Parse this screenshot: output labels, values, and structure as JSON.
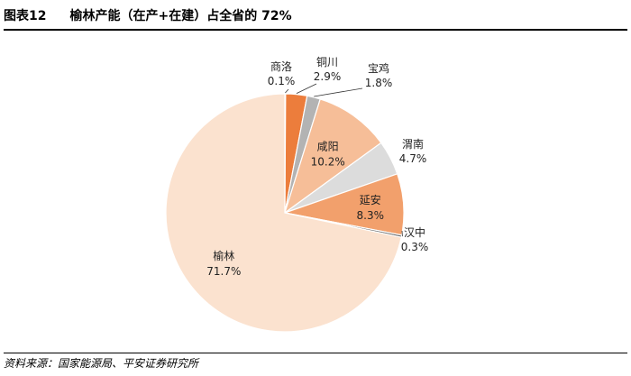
{
  "header": {
    "figure_number": "图表12",
    "title": "榆林产能（在产+在建）占全省的 72%"
  },
  "source": "资料来源：国家能源局、平安证券研究所",
  "chart_data": {
    "type": "pie",
    "title": "",
    "legend": "none",
    "slices": [
      {
        "name": "商洛",
        "value": 0.1,
        "label": "0.1%",
        "color": "#d9561f"
      },
      {
        "name": "铜川",
        "value": 2.9,
        "label": "2.9%",
        "color": "#ec7d3c"
      },
      {
        "name": "宝鸡",
        "value": 1.8,
        "label": "1.8%",
        "color": "#b3b3b3"
      },
      {
        "name": "咸阳",
        "value": 10.2,
        "label": "10.2%",
        "color": "#f6be98"
      },
      {
        "name": "渭南",
        "value": 4.7,
        "label": "4.7%",
        "color": "#dcdcdc"
      },
      {
        "name": "延安",
        "value": 8.3,
        "label": "8.3%",
        "color": "#f2a06c"
      },
      {
        "name": "汉中",
        "value": 0.3,
        "label": "0.3%",
        "color": "#6b6b6b"
      },
      {
        "name": "榆林",
        "value": 71.7,
        "label": "71.7%",
        "color": "#fbe2cf"
      }
    ]
  }
}
